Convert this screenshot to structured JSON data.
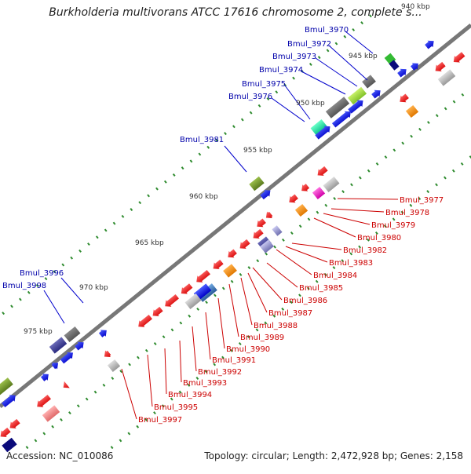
{
  "title": "Burkholderia multivorans ATCC 17616 chromosome 2, complete s...",
  "footer": {
    "accession": "Accession: NC_010086",
    "summary": "Topology: circular; Length: 2,472,928 bp; Genes: 2,158"
  },
  "colors": {
    "plus_strand": "#0000ee",
    "minus_strand": "#ee0000",
    "backbone": "#808080",
    "tick": "#228b22",
    "plus_label": "#0000aa",
    "minus_label": "#cc0000"
  },
  "kbp_ticks": [
    "940 kbp",
    "945 kbp",
    "950 kbp",
    "955 kbp",
    "960 kbp",
    "965 kbp",
    "970 kbp",
    "975 kbp"
  ],
  "plus_labels": [
    "Bmul_3970",
    "Bmul_3972",
    "Bmul_3973",
    "Bmul_3974",
    "Bmul_3975",
    "Bmul_3976",
    "Bmul_3981",
    "Bmul_3996",
    "Bmul_3998"
  ],
  "minus_labels": [
    "Bmul_3977",
    "Bmul_3978",
    "Bmul_3979",
    "Bmul_3980",
    "Bmul_3982",
    "Bmul_3983",
    "Bmul_3984",
    "Bmul_3985",
    "Bmul_3986",
    "Bmul_3987",
    "Bmul_3988",
    "Bmul_3989",
    "Bmul_3990",
    "Bmul_3991",
    "Bmul_3992",
    "Bmul_3993",
    "Bmul_3994",
    "Bmul_3995",
    "Bmul_3997"
  ]
}
